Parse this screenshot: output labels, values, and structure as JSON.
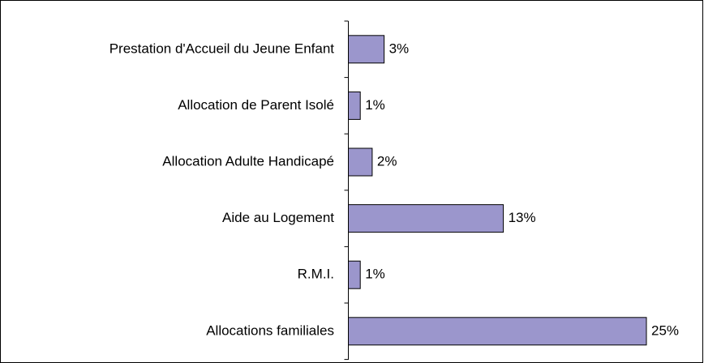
{
  "chart_data": {
    "type": "bar",
    "orientation": "horizontal",
    "categories": [
      "Prestation d'Accueil du Jeune Enfant",
      "Allocation de Parent Isolé",
      "Allocation Adulte Handicapé",
      "Aide au Logement",
      "R.M.I.",
      "Allocations familiales"
    ],
    "values": [
      3,
      1,
      2,
      13,
      1,
      25
    ],
    "value_labels": [
      "3%",
      "1%",
      "2%",
      "13%",
      "1%",
      "25%"
    ],
    "color": "#9b96cc"
  }
}
